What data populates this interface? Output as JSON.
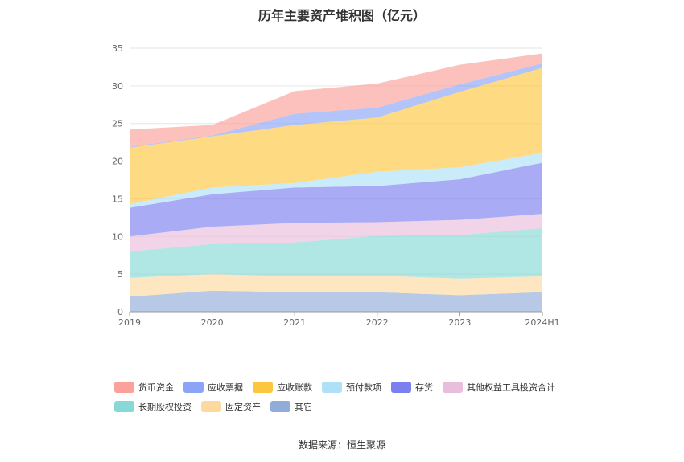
{
  "chart_data": {
    "type": "area",
    "stacked": true,
    "title": "历年主要资产堆积图（亿元）",
    "categories": [
      "2019",
      "2020",
      "2021",
      "2022",
      "2023",
      "2024H1"
    ],
    "ylim": [
      0,
      35
    ],
    "yticks": [
      0,
      5,
      10,
      15,
      20,
      25,
      30,
      35
    ],
    "grid": true,
    "legend_position": "bottom",
    "series": [
      {
        "name": "其它",
        "color": "#91acd9",
        "values": [
          2.0,
          2.8,
          2.6,
          2.6,
          2.2,
          2.6
        ]
      },
      {
        "name": "固定资产",
        "color": "#fdd9a0",
        "values": [
          2.5,
          2.2,
          2.1,
          2.2,
          2.2,
          2.1
        ]
      },
      {
        "name": "长期股权投资",
        "color": "#86d9d6",
        "values": [
          3.5,
          4.0,
          4.5,
          5.3,
          5.8,
          6.4
        ]
      },
      {
        "name": "其他权益工具投资合计",
        "color": "#e9bddc",
        "values": [
          2.0,
          2.3,
          2.6,
          1.8,
          2.0,
          1.9
        ]
      },
      {
        "name": "存货",
        "color": "#7b7ff0",
        "values": [
          3.8,
          4.3,
          4.7,
          4.8,
          5.4,
          6.8
        ]
      },
      {
        "name": "预付款项",
        "color": "#aee0f7",
        "values": [
          0.5,
          0.9,
          0.6,
          1.9,
          1.6,
          1.3
        ]
      },
      {
        "name": "应收账款",
        "color": "#fdc63f",
        "values": [
          7.5,
          6.8,
          7.7,
          7.2,
          10.0,
          11.3
        ]
      },
      {
        "name": "应收票据",
        "color": "#8ba4f7",
        "values": [
          0.1,
          0.1,
          1.5,
          1.3,
          1.0,
          0.6
        ]
      },
      {
        "name": "货币资金",
        "color": "#fba09a",
        "values": [
          2.3,
          1.4,
          3.0,
          3.2,
          2.6,
          1.3
        ]
      }
    ]
  },
  "legend": {
    "row1": [
      {
        "label": "货币资金",
        "color": "#fba09a"
      },
      {
        "label": "应收票据",
        "color": "#8ba4f7"
      },
      {
        "label": "应收账款",
        "color": "#fdc63f"
      },
      {
        "label": "预付款项",
        "color": "#aee0f7"
      },
      {
        "label": "存货",
        "color": "#7b7ff0"
      },
      {
        "label": "其他权益工具投资合计",
        "color": "#e9bddc"
      }
    ],
    "row2": [
      {
        "label": "长期股权投资",
        "color": "#86d9d6"
      },
      {
        "label": "固定资产",
        "color": "#fdd9a0"
      },
      {
        "label": "其它",
        "color": "#91acd9"
      }
    ]
  },
  "source": "数据来源：恒生聚源"
}
